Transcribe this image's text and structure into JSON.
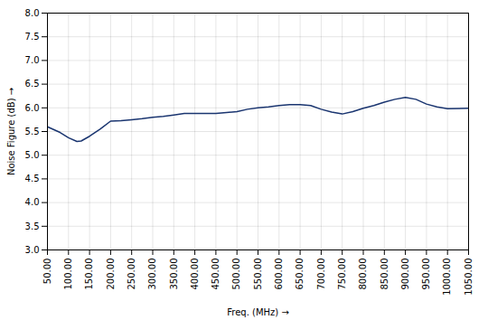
{
  "chart_data": {
    "type": "line",
    "x": [
      50,
      80,
      100,
      120,
      130,
      150,
      175,
      200,
      225,
      250,
      275,
      300,
      325,
      350,
      375,
      400,
      425,
      450,
      475,
      500,
      525,
      550,
      575,
      600,
      625,
      650,
      675,
      700,
      725,
      750,
      775,
      800,
      825,
      850,
      875,
      900,
      925,
      950,
      975,
      1000,
      1050
    ],
    "values": [
      5.6,
      5.48,
      5.37,
      5.29,
      5.3,
      5.4,
      5.55,
      5.72,
      5.73,
      5.75,
      5.77,
      5.8,
      5.82,
      5.85,
      5.88,
      5.88,
      5.88,
      5.88,
      5.9,
      5.92,
      5.97,
      6.0,
      6.02,
      6.05,
      6.07,
      6.07,
      6.05,
      5.97,
      5.91,
      5.87,
      5.92,
      5.99,
      6.05,
      6.12,
      6.18,
      6.22,
      6.18,
      6.08,
      6.02,
      5.98,
      5.99
    ],
    "color": "#1a3570",
    "xlabel": "Freq. (MHz)",
    "ylabel": "Noise Figure (dB)",
    "xlim": [
      50,
      1050
    ],
    "ylim": [
      3.0,
      8.0
    ],
    "xticks": [
      {
        "value": 50,
        "label": "50.00"
      },
      {
        "value": 100,
        "label": "100.00"
      },
      {
        "value": 150,
        "label": "150.00"
      },
      {
        "value": 200,
        "label": "200.00"
      },
      {
        "value": 250,
        "label": "250.00"
      },
      {
        "value": 300,
        "label": "300.00"
      },
      {
        "value": 350,
        "label": "350.00"
      },
      {
        "value": 400,
        "label": "400.00"
      },
      {
        "value": 450,
        "label": "450.00"
      },
      {
        "value": 500,
        "label": "500.00"
      },
      {
        "value": 550,
        "label": "550.00"
      },
      {
        "value": 600,
        "label": "600.00"
      },
      {
        "value": 650,
        "label": "650.00"
      },
      {
        "value": 700,
        "label": "700.00"
      },
      {
        "value": 750,
        "label": "750.00"
      },
      {
        "value": 800,
        "label": "800.00"
      },
      {
        "value": 850,
        "label": "850.00"
      },
      {
        "value": 900,
        "label": "900.00"
      },
      {
        "value": 950,
        "label": "950.00"
      },
      {
        "value": 1000,
        "label": "1000.00"
      },
      {
        "value": 1050,
        "label": "1050.00"
      }
    ],
    "yticks": [
      {
        "value": 3,
        "label": "3.0"
      },
      3.5,
      {
        "value": 4,
        "label": "4.0"
      },
      4.5,
      {
        "value": 5,
        "label": "5.0"
      },
      5.5,
      {
        "value": 6,
        "label": "6.0"
      },
      6.5,
      {
        "value": 7,
        "label": "7.0"
      },
      7.5,
      {
        "value": 8,
        "label": "8.0"
      }
    ],
    "grid": true
  }
}
